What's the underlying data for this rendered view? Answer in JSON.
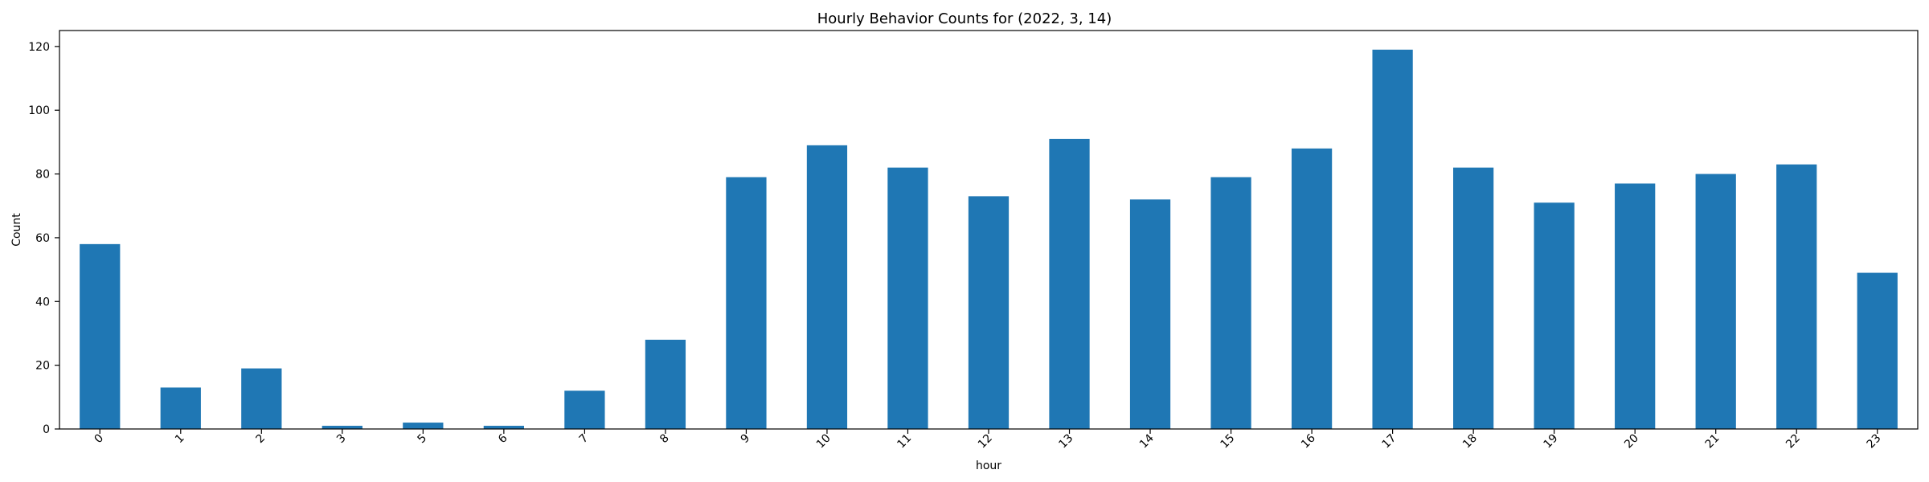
{
  "chart_data": {
    "type": "bar",
    "title": "Hourly Behavior Counts for (2022, 3, 14)",
    "xlabel": "hour",
    "ylabel": "Count",
    "categories": [
      "0",
      "1",
      "2",
      "3",
      "5",
      "6",
      "7",
      "8",
      "9",
      "10",
      "11",
      "12",
      "13",
      "14",
      "15",
      "16",
      "17",
      "18",
      "19",
      "20",
      "21",
      "22",
      "23"
    ],
    "values": [
      58,
      13,
      19,
      1,
      2,
      1,
      12,
      28,
      79,
      89,
      82,
      73,
      91,
      72,
      79,
      88,
      119,
      82,
      71,
      77,
      80,
      83,
      49
    ],
    "ylim": [
      0,
      125
    ],
    "yticks": [
      0,
      20,
      40,
      60,
      80,
      100,
      120
    ],
    "grid": false,
    "colors": {
      "bar": "#1f77b4",
      "axis": "#000000"
    }
  }
}
